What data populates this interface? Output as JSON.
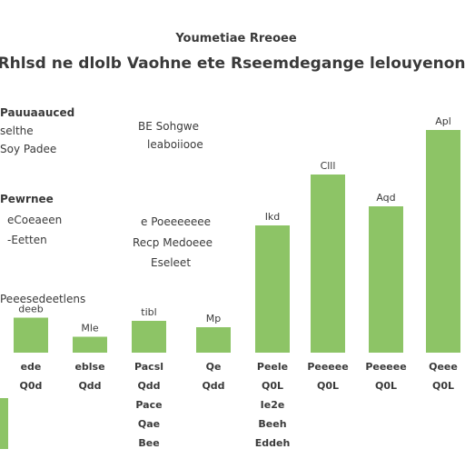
{
  "colors": {
    "bar": "#8dc466",
    "text": "#3a3a3a",
    "background": "#ffffff"
  },
  "header": {
    "title": "Youmetiae Rreoee",
    "subtitle": "Rhlsd ne dlolb Vaohne  ete Rseemdegange lelouyenon"
  },
  "annotations": {
    "top_left": [
      "Pauuaauced",
      "selthe",
      "Soy Padee"
    ],
    "mid_left": [
      "Pewrnee",
      "eCoeaeen",
      "-Eetten"
    ],
    "low_left": [
      "Peeesedeetlens"
    ],
    "top_center": [
      "BE Sohgwe",
      "leaboiiooe"
    ],
    "mid_center": [
      "e Poeeeeeee",
      "Recp Medoeee",
      "Eseleet"
    ]
  },
  "chart_data": {
    "type": "bar",
    "categories": [
      "Qdd",
      "Qdd",
      "Qdd",
      "Qdd",
      "Q0L",
      "Q0L",
      "Q0L",
      "Q0L"
    ],
    "values": [
      11,
      5,
      10,
      8,
      40,
      56,
      46,
      70
    ],
    "data_labels": [
      "deeb",
      "Mle",
      "tibl",
      "Mp",
      "Ikd",
      "Clll",
      "Aqd",
      "Apl"
    ],
    "tick_labels": [
      [
        "ede",
        "Q0d"
      ],
      [
        "eblse",
        "Qdd"
      ],
      [
        "Pacsl",
        "Qdd",
        "Pace",
        "Qae",
        "Bee"
      ],
      [
        "Qe",
        "Qdd"
      ],
      [
        "Peele",
        "Q0L",
        "Ie2e",
        "Beeh",
        "Eddeh"
      ],
      [
        "Peeeee",
        "Q0L"
      ],
      [
        "Peeeee",
        "Q0L"
      ],
      [
        "Qeee",
        "Q0L"
      ]
    ],
    "ylim": [
      0,
      80
    ],
    "grid": false,
    "xlabel": "",
    "ylabel": ""
  }
}
